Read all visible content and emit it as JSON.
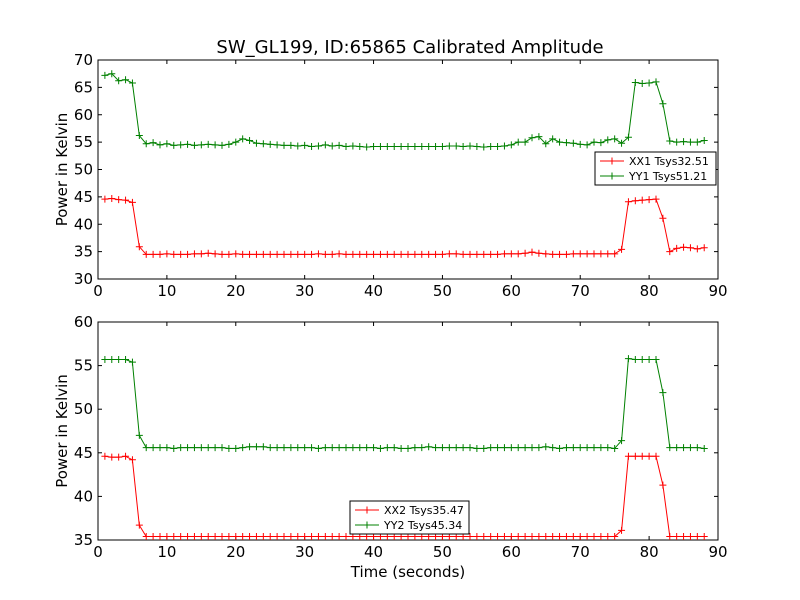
{
  "title": "SW_GL199, ID:65865 Calibrated Amplitude",
  "colors": {
    "red": "#ff0000",
    "green": "#008000"
  },
  "chart_data": [
    {
      "type": "line",
      "title": "SW_GL199, ID:65865 Calibrated Amplitude",
      "xlabel": "",
      "ylabel": "Power in Kelvin",
      "xlim": [
        0,
        90
      ],
      "ylim": [
        30,
        70
      ],
      "xticks": [
        "0",
        "10",
        "20",
        "30",
        "40",
        "50",
        "60",
        "70",
        "80",
        "90"
      ],
      "yticks": [
        "30",
        "35",
        "40",
        "45",
        "50",
        "55",
        "60",
        "65",
        "70"
      ],
      "legend_position": "right",
      "series": [
        {
          "name": "XX1 Tsys32.51",
          "color": "#ff0000",
          "x": [
            1,
            2,
            3,
            4,
            5,
            6,
            7,
            8,
            9,
            10,
            11,
            12,
            13,
            14,
            15,
            16,
            17,
            18,
            19,
            20,
            21,
            22,
            23,
            24,
            25,
            26,
            27,
            28,
            29,
            30,
            31,
            32,
            33,
            34,
            35,
            36,
            37,
            38,
            39,
            40,
            41,
            42,
            43,
            44,
            45,
            46,
            47,
            48,
            49,
            50,
            51,
            52,
            53,
            54,
            55,
            56,
            57,
            58,
            59,
            60,
            61,
            62,
            63,
            64,
            65,
            66,
            67,
            68,
            69,
            70,
            71,
            72,
            73,
            74,
            75,
            76,
            77,
            78,
            79,
            80,
            81,
            82,
            83,
            84,
            85,
            86,
            87,
            88
          ],
          "values": [
            44.6,
            44.7,
            44.5,
            44.4,
            44.0,
            35.9,
            34.5,
            34.5,
            34.5,
            34.6,
            34.5,
            34.5,
            34.5,
            34.6,
            34.6,
            34.7,
            34.6,
            34.5,
            34.5,
            34.6,
            34.5,
            34.5,
            34.5,
            34.5,
            34.5,
            34.5,
            34.5,
            34.5,
            34.5,
            34.5,
            34.5,
            34.6,
            34.5,
            34.5,
            34.6,
            34.5,
            34.5,
            34.5,
            34.5,
            34.5,
            34.5,
            34.5,
            34.5,
            34.5,
            34.5,
            34.5,
            34.5,
            34.5,
            34.5,
            34.5,
            34.6,
            34.6,
            34.5,
            34.5,
            34.5,
            34.5,
            34.5,
            34.5,
            34.6,
            34.6,
            34.6,
            34.7,
            34.9,
            34.7,
            34.6,
            34.5,
            34.5,
            34.5,
            34.6,
            34.6,
            34.6,
            34.6,
            34.6,
            34.6,
            34.6,
            35.4,
            44.1,
            44.3,
            44.4,
            44.5,
            44.6,
            41.1,
            35.0,
            35.6,
            35.8,
            35.7,
            35.5,
            35.7
          ]
        },
        {
          "name": "YY1 Tsys51.21",
          "color": "#008000",
          "x": [
            1,
            2,
            3,
            4,
            5,
            6,
            7,
            8,
            9,
            10,
            11,
            12,
            13,
            14,
            15,
            16,
            17,
            18,
            19,
            20,
            21,
            22,
            23,
            24,
            25,
            26,
            27,
            28,
            29,
            30,
            31,
            32,
            33,
            34,
            35,
            36,
            37,
            38,
            39,
            40,
            41,
            42,
            43,
            44,
            45,
            46,
            47,
            48,
            49,
            50,
            51,
            52,
            53,
            54,
            55,
            56,
            57,
            58,
            59,
            60,
            61,
            62,
            63,
            64,
            65,
            66,
            67,
            68,
            69,
            70,
            71,
            72,
            73,
            74,
            75,
            76,
            77,
            78,
            79,
            80,
            81,
            82,
            83,
            84,
            85,
            86,
            87,
            88
          ],
          "values": [
            67.2,
            67.5,
            66.2,
            66.4,
            65.8,
            56.2,
            54.7,
            54.9,
            54.5,
            54.7,
            54.4,
            54.5,
            54.6,
            54.4,
            54.5,
            54.6,
            54.5,
            54.4,
            54.6,
            55.0,
            55.6,
            55.3,
            54.8,
            54.7,
            54.6,
            54.5,
            54.4,
            54.4,
            54.3,
            54.4,
            54.2,
            54.3,
            54.5,
            54.3,
            54.4,
            54.2,
            54.3,
            54.2,
            54.1,
            54.2,
            54.2,
            54.2,
            54.2,
            54.2,
            54.2,
            54.2,
            54.2,
            54.2,
            54.2,
            54.2,
            54.3,
            54.3,
            54.2,
            54.3,
            54.2,
            54.1,
            54.2,
            54.2,
            54.3,
            54.5,
            55.0,
            55.0,
            55.8,
            56.0,
            54.7,
            55.6,
            55.0,
            54.9,
            54.8,
            54.6,
            54.5,
            55.0,
            54.9,
            55.4,
            55.6,
            54.8,
            55.9,
            65.9,
            65.7,
            65.8,
            66.0,
            62.0,
            55.2,
            55.0,
            55.1,
            55.0,
            55.0,
            55.3
          ]
        }
      ]
    },
    {
      "type": "line",
      "title": "",
      "xlabel": "Time (seconds)",
      "ylabel": "Power in Kelvin",
      "xlim": [
        0,
        90
      ],
      "ylim": [
        35,
        60
      ],
      "xticks": [
        "0",
        "10",
        "20",
        "30",
        "40",
        "50",
        "60",
        "70",
        "80",
        "90"
      ],
      "yticks": [
        "35",
        "40",
        "45",
        "50",
        "55",
        "60"
      ],
      "legend_position": "lower-center",
      "series": [
        {
          "name": "XX2 Tsys35.47",
          "color": "#ff0000",
          "x": [
            1,
            2,
            3,
            4,
            5,
            6,
            7,
            8,
            9,
            10,
            11,
            12,
            13,
            14,
            15,
            16,
            17,
            18,
            19,
            20,
            21,
            22,
            23,
            24,
            25,
            26,
            27,
            28,
            29,
            30,
            31,
            32,
            33,
            34,
            35,
            36,
            37,
            38,
            39,
            40,
            41,
            42,
            43,
            44,
            45,
            46,
            47,
            48,
            49,
            50,
            51,
            52,
            53,
            54,
            55,
            56,
            57,
            58,
            59,
            60,
            61,
            62,
            63,
            64,
            65,
            66,
            67,
            68,
            69,
            70,
            71,
            72,
            73,
            74,
            75,
            76,
            77,
            78,
            79,
            80,
            81,
            82,
            83,
            84,
            85,
            86,
            87,
            88
          ],
          "values": [
            44.6,
            44.5,
            44.5,
            44.6,
            44.2,
            36.7,
            35.4,
            35.4,
            35.4,
            35.4,
            35.4,
            35.4,
            35.4,
            35.4,
            35.4,
            35.4,
            35.4,
            35.4,
            35.4,
            35.4,
            35.4,
            35.4,
            35.4,
            35.4,
            35.4,
            35.4,
            35.4,
            35.4,
            35.4,
            35.4,
            35.4,
            35.4,
            35.4,
            35.4,
            35.4,
            35.4,
            35.4,
            35.4,
            35.4,
            35.4,
            35.4,
            35.4,
            35.4,
            35.4,
            35.4,
            35.4,
            35.4,
            35.4,
            35.4,
            35.4,
            35.4,
            35.4,
            35.4,
            35.4,
            35.4,
            35.4,
            35.4,
            35.4,
            35.4,
            35.4,
            35.4,
            35.4,
            35.4,
            35.4,
            35.4,
            35.4,
            35.4,
            35.4,
            35.4,
            35.4,
            35.4,
            35.4,
            35.4,
            35.4,
            35.4,
            36.1,
            44.6,
            44.6,
            44.6,
            44.6,
            44.6,
            41.3,
            35.4,
            35.4,
            35.4,
            35.4,
            35.4,
            35.4
          ]
        },
        {
          "name": "YY2 Tsys45.34",
          "color": "#008000",
          "x": [
            1,
            2,
            3,
            4,
            5,
            6,
            7,
            8,
            9,
            10,
            11,
            12,
            13,
            14,
            15,
            16,
            17,
            18,
            19,
            20,
            21,
            22,
            23,
            24,
            25,
            26,
            27,
            28,
            29,
            30,
            31,
            32,
            33,
            34,
            35,
            36,
            37,
            38,
            39,
            40,
            41,
            42,
            43,
            44,
            45,
            46,
            47,
            48,
            49,
            50,
            51,
            52,
            53,
            54,
            55,
            56,
            57,
            58,
            59,
            60,
            61,
            62,
            63,
            64,
            65,
            66,
            67,
            68,
            69,
            70,
            71,
            72,
            73,
            74,
            75,
            76,
            77,
            78,
            79,
            80,
            81,
            82,
            83,
            84,
            85,
            86,
            87,
            88
          ],
          "values": [
            55.7,
            55.7,
            55.7,
            55.7,
            55.4,
            47.0,
            45.6,
            45.6,
            45.6,
            45.6,
            45.5,
            45.6,
            45.6,
            45.6,
            45.6,
            45.6,
            45.6,
            45.6,
            45.5,
            45.5,
            45.6,
            45.7,
            45.7,
            45.7,
            45.6,
            45.6,
            45.6,
            45.6,
            45.6,
            45.6,
            45.6,
            45.5,
            45.6,
            45.6,
            45.6,
            45.6,
            45.6,
            45.6,
            45.6,
            45.6,
            45.5,
            45.6,
            45.6,
            45.5,
            45.5,
            45.6,
            45.6,
            45.7,
            45.6,
            45.6,
            45.6,
            45.6,
            45.6,
            45.6,
            45.5,
            45.5,
            45.6,
            45.6,
            45.6,
            45.6,
            45.6,
            45.6,
            45.6,
            45.6,
            45.7,
            45.6,
            45.5,
            45.6,
            45.6,
            45.6,
            45.6,
            45.6,
            45.6,
            45.6,
            45.5,
            46.4,
            55.8,
            55.7,
            55.7,
            55.7,
            55.7,
            51.9,
            45.6,
            45.6,
            45.6,
            45.6,
            45.6,
            45.5
          ]
        }
      ]
    }
  ]
}
